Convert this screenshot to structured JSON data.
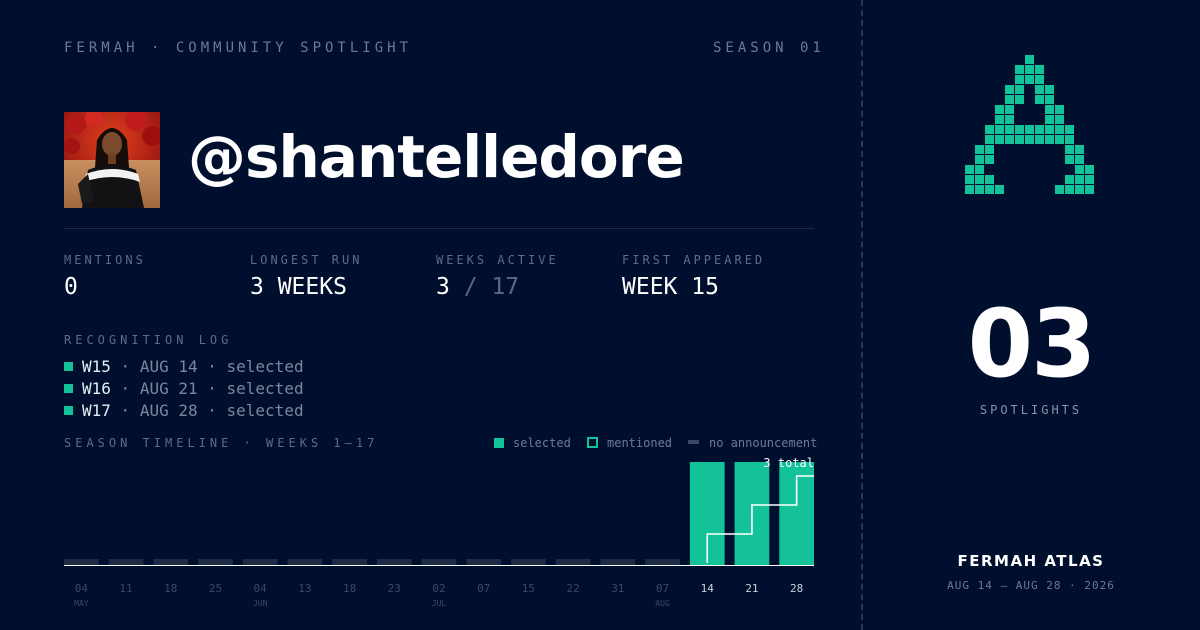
{
  "header": {
    "brand_line": "FERMAH · COMMUNITY SPOTLIGHT",
    "season": "SEASON 01"
  },
  "profile": {
    "handle": "@shantelledore",
    "avatar_icon": "avatar-photo"
  },
  "stats": {
    "mentions": {
      "label": "MENTIONS",
      "value": "0"
    },
    "longest_run": {
      "label": "LONGEST RUN",
      "value": "3 WEEKS"
    },
    "weeks_active": {
      "label": "WEEKS ACTIVE",
      "value": "3",
      "separator": "/",
      "total": "17"
    },
    "first_appeared": {
      "label": "FIRST APPEARED",
      "value": "WEEK 15"
    }
  },
  "log": {
    "title": "RECOGNITION LOG",
    "entries": [
      {
        "week": "W15",
        "date": "AUG 14",
        "status": "selected"
      },
      {
        "week": "W16",
        "date": "AUG 21",
        "status": "selected"
      },
      {
        "week": "W17",
        "date": "AUG 28",
        "status": "selected"
      }
    ]
  },
  "timeline": {
    "title": "SEASON TIMELINE · WEEKS 1–17",
    "legend": {
      "selected": "selected",
      "mentioned": "mentioned",
      "none": "no announcement"
    },
    "total_label": "3 total"
  },
  "chart_data": {
    "type": "bar",
    "categories": [
      "04",
      "11",
      "18",
      "25",
      "04",
      "13",
      "18",
      "23",
      "02",
      "07",
      "15",
      "22",
      "31",
      "07",
      "14",
      "21",
      "28"
    ],
    "month_labels": [
      {
        "index": 0,
        "label": "MAY"
      },
      {
        "index": 4,
        "label": "JUN"
      },
      {
        "index": 8,
        "label": "JUL"
      },
      {
        "index": 13,
        "label": "AUG"
      }
    ],
    "status": [
      "none",
      "none",
      "none",
      "none",
      "none",
      "none",
      "none",
      "none",
      "none",
      "none",
      "none",
      "none",
      "none",
      "none",
      "selected",
      "selected",
      "selected"
    ],
    "cumulative": [
      0,
      0,
      0,
      0,
      0,
      0,
      0,
      0,
      0,
      0,
      0,
      0,
      0,
      0,
      1,
      2,
      3
    ],
    "ylim": [
      0,
      3
    ]
  },
  "spotlight": {
    "count": "03",
    "label": "SPOTLIGHTS",
    "logo_icon": "pixel-a-logo"
  },
  "footer": {
    "atlas": "FERMAH ATLAS",
    "range": "AUG 14 — AUG 28 · 2026"
  },
  "colors": {
    "background": "#010f2f",
    "accent": "#14c29a",
    "muted_bar": "#1f2b45"
  }
}
